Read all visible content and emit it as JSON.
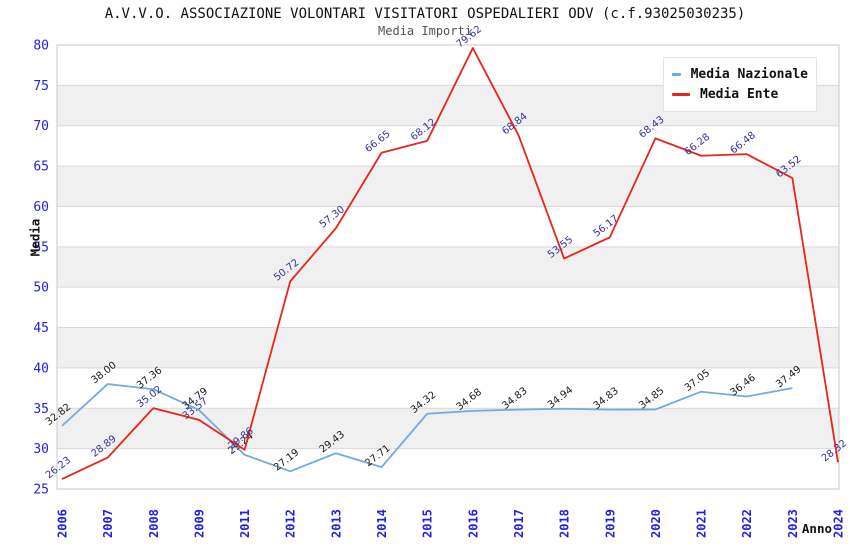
{
  "title": "A.V.V.O. ASSOCIAZIONE VOLONTARI VISITATORI OSPEDALIERI ODV (c.f.93025030235)",
  "subtitle": "Media Importi",
  "legend": {
    "items": [
      {
        "label": "Media Nazionale",
        "color": "#72abdd"
      },
      {
        "label": "Media Ente",
        "color": "#e8251b"
      }
    ]
  },
  "axes": {
    "y_title": "Media",
    "x_title": "Anno",
    "tick_color": "#2222dd",
    "y_ticks": [
      25,
      30,
      35,
      40,
      45,
      50,
      55,
      60,
      65,
      70,
      75,
      80
    ]
  },
  "chart_data": {
    "type": "line",
    "title": "A.V.V.O. ASSOCIAZIONE VOLONTARI VISITATORI OSPEDALIERI ODV (c.f.93025030235)",
    "subtitle": "Media Importi",
    "xlabel": "Anno",
    "ylabel": "Media",
    "ylim": [
      25,
      80
    ],
    "y_step": 5,
    "grid": true,
    "legend_position": "top-right",
    "band_colors": [
      "#ffffff",
      "#f0f0f0"
    ],
    "grid_color": "#d9d9d9",
    "border_color": "#c9c9c9",
    "categories": [
      "2006",
      "2007",
      "2008",
      "2009",
      "2011",
      "2012",
      "2013",
      "2014",
      "2015",
      "2016",
      "2017",
      "2018",
      "2019",
      "2020",
      "2021",
      "2022",
      "2023",
      "2024"
    ],
    "series": [
      {
        "name": "Media Nazionale",
        "color": "#72abdd",
        "label_color": "#1a1a1a",
        "values": [
          32.82,
          38.0,
          37.36,
          34.79,
          29.24,
          27.19,
          29.43,
          27.71,
          34.32,
          34.68,
          34.83,
          34.94,
          34.83,
          34.85,
          37.05,
          36.46,
          37.49,
          null
        ]
      },
      {
        "name": "Media Ente",
        "color": "#e8251b",
        "label_color": "#333399",
        "values": [
          26.23,
          28.89,
          35.02,
          33.57,
          29.86,
          50.72,
          57.3,
          66.65,
          68.12,
          79.62,
          68.84,
          53.55,
          56.17,
          68.43,
          66.28,
          66.48,
          63.52,
          28.32
        ]
      }
    ]
  }
}
